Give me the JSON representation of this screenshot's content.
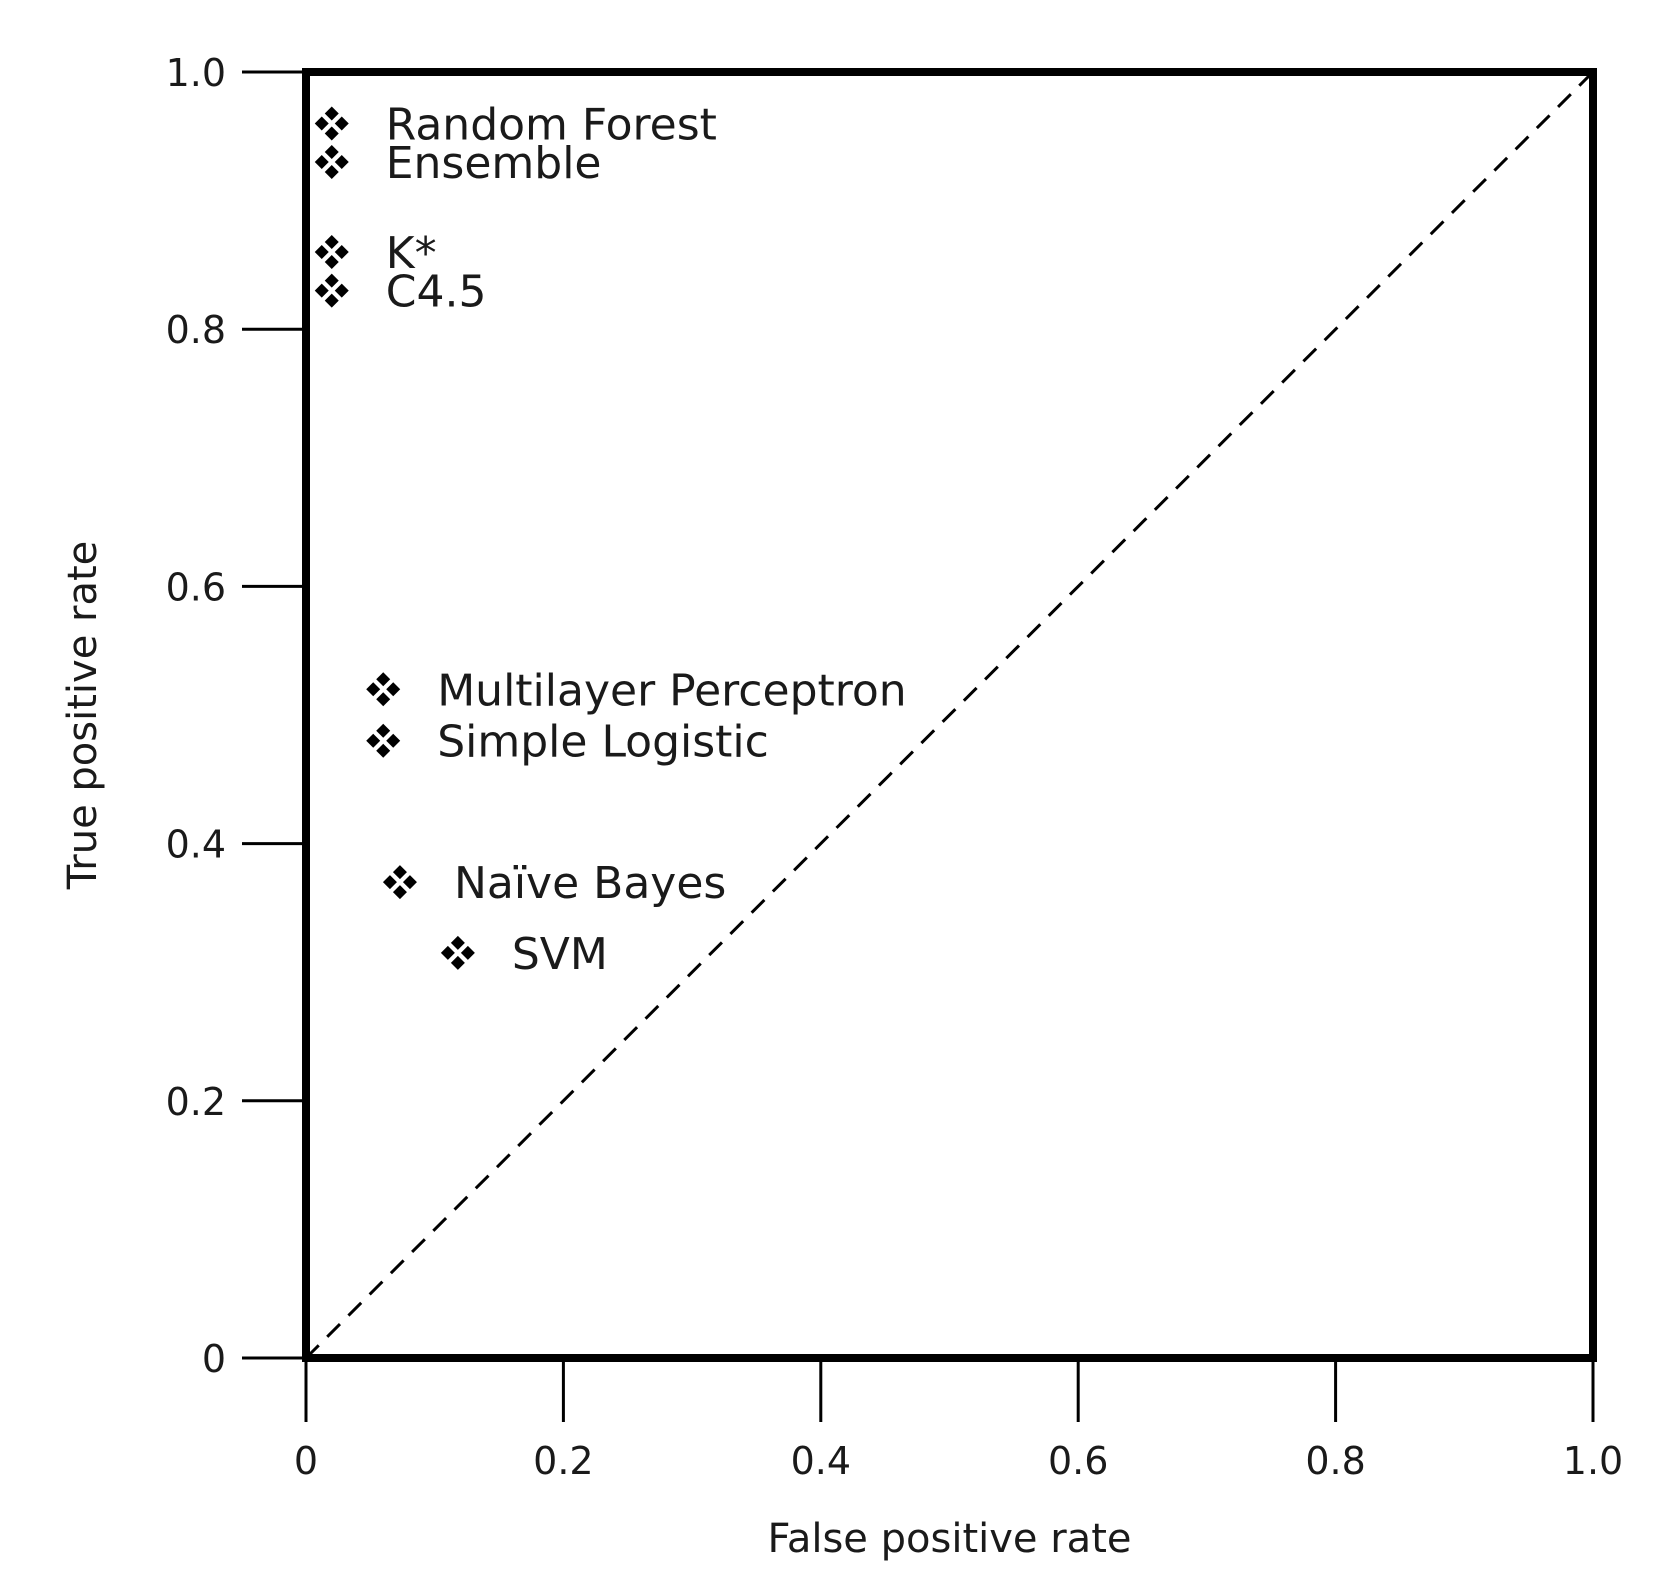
{
  "chart_data": {
    "type": "scatter",
    "title": "",
    "xlabel": "False positive rate",
    "ylabel": "True positive rate",
    "xlim": [
      0,
      1
    ],
    "ylim": [
      0,
      1
    ],
    "xticks": [
      0,
      0.2,
      0.4,
      0.6,
      0.8,
      1.0
    ],
    "xtick_labels": [
      "0",
      "0.2",
      "0.4",
      "0.6",
      "0.8",
      "1.0"
    ],
    "yticks": [
      0,
      0.2,
      0.4,
      0.6,
      0.8,
      1.0
    ],
    "ytick_labels": [
      "0",
      "0.2",
      "0.4",
      "0.6",
      "0.8",
      "1.0"
    ],
    "grid": false,
    "legend": "none",
    "marker": "four-diamond",
    "colors": {
      "ink": "#000000",
      "text": "#1a1a1a"
    },
    "reference_line": {
      "style": "dashed",
      "from": [
        0,
        0
      ],
      "to": [
        1,
        1
      ]
    },
    "points": [
      {
        "name": "Random Forest",
        "x": 0.02,
        "y": 0.96
      },
      {
        "name": "Ensemble",
        "x": 0.02,
        "y": 0.93
      },
      {
        "name": "K*",
        "x": 0.02,
        "y": 0.86
      },
      {
        "name": "C4.5",
        "x": 0.02,
        "y": 0.83
      },
      {
        "name": "Multilayer Perceptron",
        "x": 0.06,
        "y": 0.52
      },
      {
        "name": "Simple Logistic",
        "x": 0.06,
        "y": 0.48
      },
      {
        "name": "Naïve Bayes",
        "x": 0.073,
        "y": 0.37
      },
      {
        "name": "SVM",
        "x": 0.118,
        "y": 0.315
      }
    ]
  }
}
